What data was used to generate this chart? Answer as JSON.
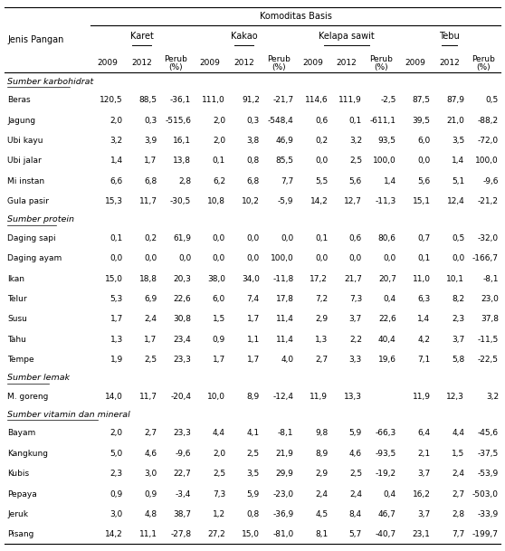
{
  "title": "Komoditas Basis",
  "col_groups": [
    "Karet",
    "Kakao",
    "Kelapa sawit",
    "Tebu"
  ],
  "rows": [
    {
      "section": "Sumber karbohidrat",
      "label": "Beras",
      "vals": [
        "120,5",
        "88,5",
        "-36,1",
        "111,0",
        "91,2",
        "-21,7",
        "114,6",
        "111,9",
        "-2,5",
        "87,5",
        "87,9",
        "0,5"
      ]
    },
    {
      "section": "Sumber karbohidrat",
      "label": "Jagung",
      "vals": [
        "2,0",
        "0,3",
        "-515,6",
        "2,0",
        "0,3",
        "-548,4",
        "0,6",
        "0,1",
        "-611,1",
        "39,5",
        "21,0",
        "-88,2"
      ]
    },
    {
      "section": "Sumber karbohidrat",
      "label": "Ubi kayu",
      "vals": [
        "3,2",
        "3,9",
        "16,1",
        "2,0",
        "3,8",
        "46,9",
        "0,2",
        "3,2",
        "93,5",
        "6,0",
        "3,5",
        "-72,0"
      ]
    },
    {
      "section": "Sumber karbohidrat",
      "label": "Ubi jalar",
      "vals": [
        "1,4",
        "1,7",
        "13,8",
        "0,1",
        "0,8",
        "85,5",
        "0,0",
        "2,5",
        "100,0",
        "0,0",
        "1,4",
        "100,0"
      ]
    },
    {
      "section": "Sumber karbohidrat",
      "label": "Mi instan",
      "vals": [
        "6,6",
        "6,8",
        "2,8",
        "6,2",
        "6,8",
        "7,7",
        "5,5",
        "5,6",
        "1,4",
        "5,6",
        "5,1",
        "-9,6"
      ]
    },
    {
      "section": "Sumber karbohidrat",
      "label": "Gula pasir",
      "vals": [
        "15,3",
        "11,7",
        "-30,5",
        "10,8",
        "10,2",
        "-5,9",
        "14,2",
        "12,7",
        "-11,3",
        "15,1",
        "12,4",
        "-21,2"
      ]
    },
    {
      "section": "Sumber protein",
      "label": "Daging sapi",
      "vals": [
        "0,1",
        "0,2",
        "61,9",
        "0,0",
        "0,0",
        "0,0",
        "0,1",
        "0,6",
        "80,6",
        "0,7",
        "0,5",
        "-32,0"
      ]
    },
    {
      "section": "Sumber protein",
      "label": "Daging ayam",
      "vals": [
        "0,0",
        "0,0",
        "0,0",
        "0,0",
        "0,0",
        "100,0",
        "0,0",
        "0,0",
        "0,0",
        "0,1",
        "0,0",
        "-166,7"
      ]
    },
    {
      "section": "Sumber protein",
      "label": "Ikan",
      "vals": [
        "15,0",
        "18,8",
        "20,3",
        "38,0",
        "34,0",
        "-11,8",
        "17,2",
        "21,7",
        "20,7",
        "11,0",
        "10,1",
        "-8,1"
      ]
    },
    {
      "section": "Sumber protein",
      "label": "Telur",
      "vals": [
        "5,3",
        "6,9",
        "22,6",
        "6,0",
        "7,4",
        "17,8",
        "7,2",
        "7,3",
        "0,4",
        "6,3",
        "8,2",
        "23,0"
      ]
    },
    {
      "section": "Sumber protein",
      "label": "Susu",
      "vals": [
        "1,7",
        "2,4",
        "30,8",
        "1,5",
        "1,7",
        "11,4",
        "2,9",
        "3,7",
        "22,6",
        "1,4",
        "2,3",
        "37,8"
      ]
    },
    {
      "section": "Sumber protein",
      "label": "Tahu",
      "vals": [
        "1,3",
        "1,7",
        "23,4",
        "0,9",
        "1,1",
        "11,4",
        "1,3",
        "2,2",
        "40,4",
        "4,2",
        "3,7",
        "-11,5"
      ]
    },
    {
      "section": "Sumber protein",
      "label": "Tempe",
      "vals": [
        "1,9",
        "2,5",
        "23,3",
        "1,7",
        "1,7",
        "4,0",
        "2,7",
        "3,3",
        "19,6",
        "7,1",
        "5,8",
        "-22,5"
      ]
    },
    {
      "section": "Sumber lemak",
      "label": "M. goreng",
      "vals": [
        "14,0",
        "11,7",
        "-20,4",
        "10,0",
        "8,9",
        "-12,4",
        "11,9",
        "13,3",
        "",
        "11,9",
        "12,3",
        "3,2"
      ]
    },
    {
      "section": "Sumber vitamin dan mineral",
      "label": "Bayam",
      "vals": [
        "2,0",
        "2,7",
        "23,3",
        "4,4",
        "4,1",
        "-8,1",
        "9,8",
        "5,9",
        "-66,3",
        "6,4",
        "4,4",
        "-45,6"
      ]
    },
    {
      "section": "Sumber vitamin dan mineral",
      "label": "Kangkung",
      "vals": [
        "5,0",
        "4,6",
        "-9,6",
        "2,0",
        "2,5",
        "21,9",
        "8,9",
        "4,6",
        "-93,5",
        "2,1",
        "1,5",
        "-37,5"
      ]
    },
    {
      "section": "Sumber vitamin dan mineral",
      "label": "Kubis",
      "vals": [
        "2,3",
        "3,0",
        "22,7",
        "2,5",
        "3,5",
        "29,9",
        "2,9",
        "2,5",
        "-19,2",
        "3,7",
        "2,4",
        "-53,9"
      ]
    },
    {
      "section": "Sumber vitamin dan mineral",
      "label": "Pepaya",
      "vals": [
        "0,9",
        "0,9",
        "-3,4",
        "7,3",
        "5,9",
        "-23,0",
        "2,4",
        "2,4",
        "0,4",
        "16,2",
        "2,7",
        "-503,0"
      ]
    },
    {
      "section": "Sumber vitamin dan mineral",
      "label": "Jeruk",
      "vals": [
        "3,0",
        "4,8",
        "38,7",
        "1,2",
        "0,8",
        "-36,9",
        "4,5",
        "8,4",
        "46,7",
        "3,7",
        "2,8",
        "-33,9"
      ]
    },
    {
      "section": "Sumber vitamin dan mineral",
      "label": "Pisang",
      "vals": [
        "14,2",
        "11,1",
        "-27,8",
        "27,2",
        "15,0",
        "-81,0",
        "8,1",
        "5,7",
        "-40,7",
        "23,1",
        "7,7",
        "-199,7"
      ]
    }
  ],
  "bg_color": "#ffffff",
  "text_color": "#000000"
}
